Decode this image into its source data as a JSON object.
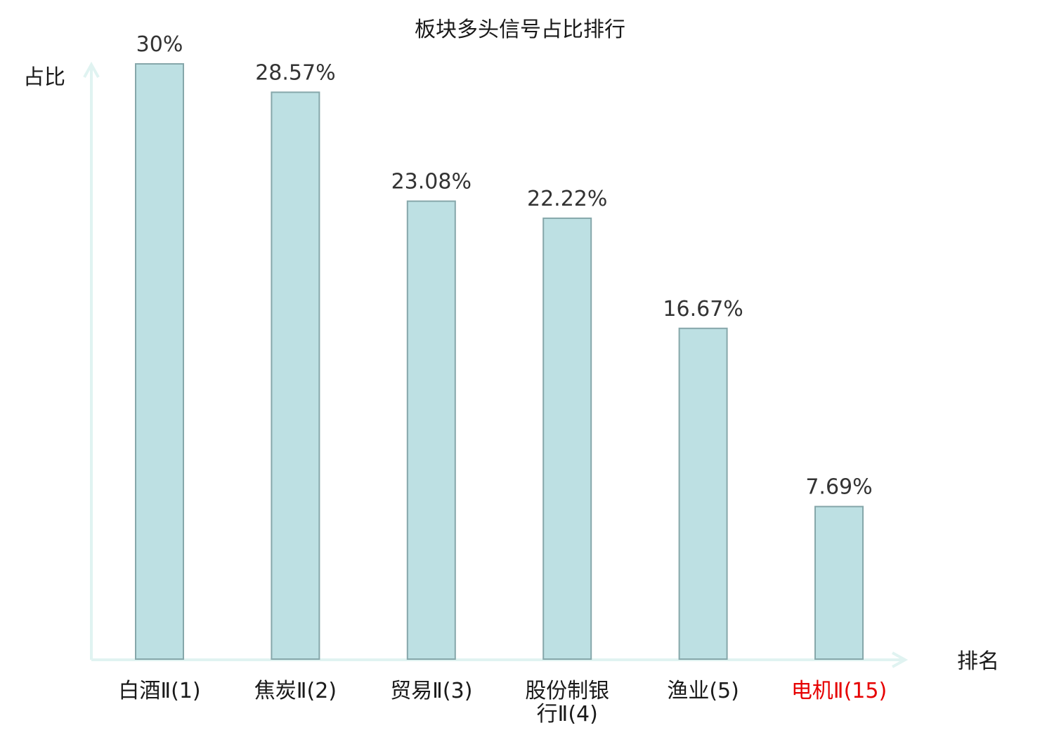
{
  "chart_data": {
    "type": "bar",
    "title": "板块多头信号占比排行",
    "ylabel": "占比",
    "xlabel": "排名",
    "categories": [
      [
        "白酒Ⅱ(1)"
      ],
      [
        "焦炭Ⅱ(2)"
      ],
      [
        "贸易Ⅱ(3)"
      ],
      [
        "股份制银",
        "行Ⅱ(4)"
      ],
      [
        "渔业(5)"
      ],
      [
        "电机Ⅱ(15)"
      ]
    ],
    "values": [
      30,
      28.57,
      23.08,
      22.22,
      16.67,
      7.69
    ],
    "value_labels": [
      "30%",
      "28.57%",
      "23.08%",
      "22.22%",
      "16.67%",
      "7.69%"
    ],
    "highlight_index": 5,
    "ylim": [
      0,
      30
    ],
    "grid": false,
    "colors": {
      "bar_fill": "#bde0e3",
      "bar_stroke": "#86a7aa",
      "axis": "#e0f3f1",
      "text": "#333333",
      "highlight": "#e60000"
    }
  }
}
